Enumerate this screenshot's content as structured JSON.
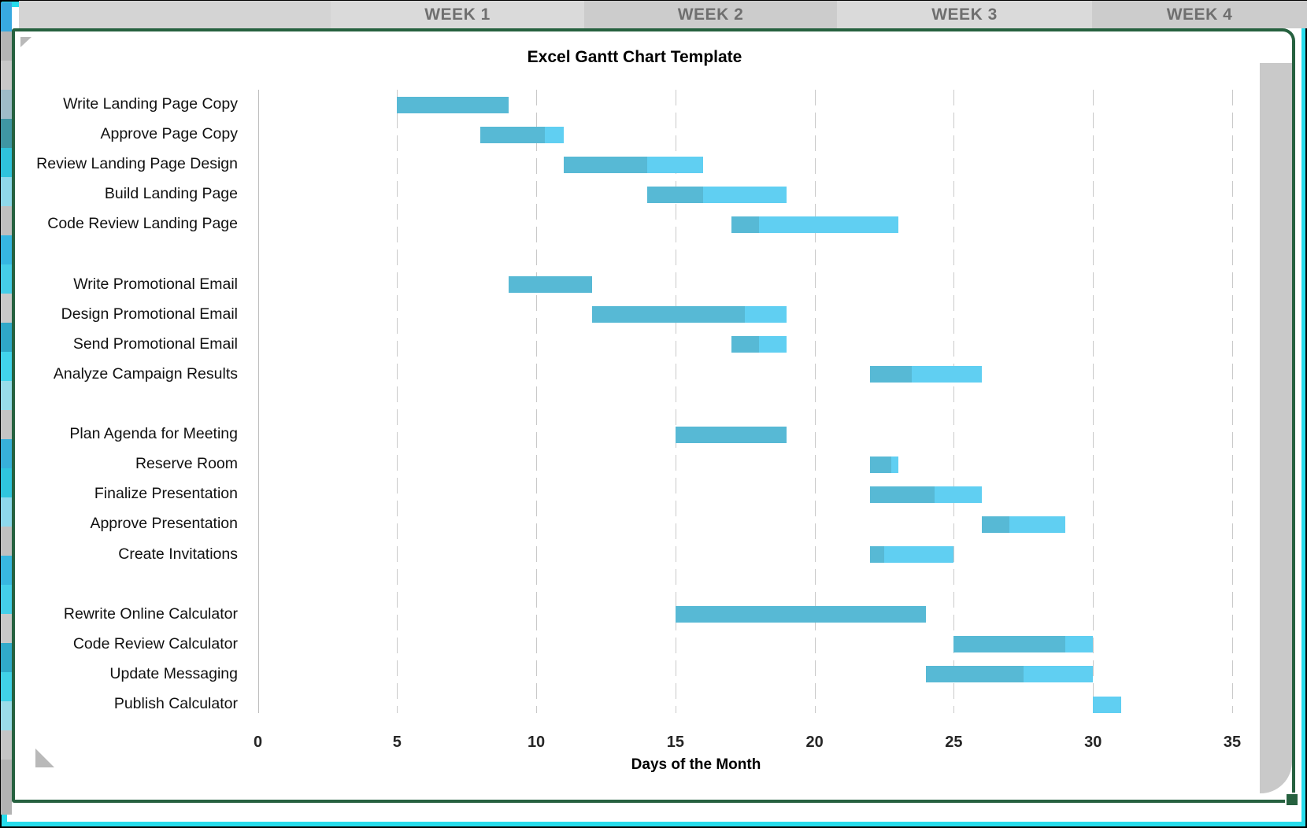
{
  "window": {
    "week_header": {
      "cells": [
        {
          "label": ""
        },
        {
          "label": "WEEK 1"
        },
        {
          "label": "WEEK 2"
        },
        {
          "label": "WEEK 3"
        },
        {
          "label": "WEEK 4"
        }
      ]
    }
  },
  "colors": {
    "outer_border": "#000000",
    "accent_cyan_ring": "#27dcec",
    "frame_green": "#26613f",
    "header_pre": "#d4d4d4",
    "header_light": "#dadada",
    "header_dark": "#cccccc",
    "header_text": "#6f6f6f",
    "bar_completed": "#57b9d5",
    "bar_remaining": "#60cff2",
    "gridline": "#c9c9c9",
    "page_shadow": "#c9c9c9"
  },
  "side_strip": {
    "colors": [
      "#38a9e0",
      "#b5b5b5",
      "#c8c8c8",
      "#9fbcc8",
      "#3f96a3",
      "#2fc3dc",
      "#8fd8ea",
      "#bfbfbf",
      "#36b6e2",
      "#45cde8",
      "#c9c9c9",
      "#2fa8c8",
      "#41d4ec",
      "#98dcea",
      "#c4c4c4",
      "#37b0da",
      "#2fc5de",
      "#8ed8ec",
      "#c0c0c0",
      "#38b7e0",
      "#44cfe9",
      "#c8c8c8",
      "#30aaca",
      "#40d2e8",
      "#9bdce9",
      "#c5c5c5",
      "#b3b3b3",
      "#b3b3b3"
    ]
  },
  "chart_data": {
    "type": "bar",
    "subtype": "gantt",
    "title": "Excel Gantt Chart Template",
    "xlabel": "Days of the Month",
    "ylabel": "",
    "xlim": [
      0,
      35
    ],
    "x_ticks": [
      0,
      5,
      10,
      15,
      20,
      25,
      30,
      35
    ],
    "grid": "dashed-vertical",
    "legend_position": "none",
    "week_headers": [
      "WEEK 1",
      "WEEK 2",
      "WEEK 3",
      "WEEK 4"
    ],
    "n_rows": 21,
    "series": [
      {
        "name": "completed",
        "color": "#57b9d5"
      },
      {
        "name": "remaining",
        "color": "#60cff2"
      }
    ],
    "tasks": [
      {
        "name": "Write Landing Page Copy",
        "row": 0,
        "start": 5,
        "end": 9,
        "progress_until": 9
      },
      {
        "name": "Approve Page Copy",
        "row": 1,
        "start": 8,
        "end": 11,
        "progress_until": 10.3
      },
      {
        "name": "Review Landing Page Design",
        "row": 2,
        "start": 11,
        "end": 16,
        "progress_until": 14
      },
      {
        "name": "Build Landing Page",
        "row": 3,
        "start": 14,
        "end": 19,
        "progress_until": 16
      },
      {
        "name": "Code Review Landing Page",
        "row": 4,
        "start": 17,
        "end": 23,
        "progress_until": 18
      },
      {
        "name": "Write Promotional Email",
        "row": 6,
        "start": 9,
        "end": 12,
        "progress_until": 12
      },
      {
        "name": "Design Promotional Email",
        "row": 7,
        "start": 12,
        "end": 19,
        "progress_until": 17.5
      },
      {
        "name": "Send Promotional Email",
        "row": 8,
        "start": 17,
        "end": 19,
        "progress_until": 18
      },
      {
        "name": "Analyze Campaign Results",
        "row": 9,
        "start": 22,
        "end": 26,
        "progress_until": 23.5
      },
      {
        "name": "Plan Agenda for Meeting",
        "row": 11,
        "start": 15,
        "end": 19,
        "progress_until": 19
      },
      {
        "name": "Reserve Room",
        "row": 12,
        "start": 22,
        "end": 23,
        "progress_until": 22.75
      },
      {
        "name": "Finalize Presentation",
        "row": 13,
        "start": 22,
        "end": 26,
        "progress_until": 24.3
      },
      {
        "name": "Approve Presentation",
        "row": 14,
        "start": 26,
        "end": 29,
        "progress_until": 27
      },
      {
        "name": "Create Invitations",
        "row": 15,
        "start": 22,
        "end": 25,
        "progress_until": 22.5
      },
      {
        "name": "Rewrite Online Calculator",
        "row": 17,
        "start": 15,
        "end": 24,
        "progress_until": 24
      },
      {
        "name": "Code Review Calculator",
        "row": 18,
        "start": 25,
        "end": 30,
        "progress_until": 29
      },
      {
        "name": "Update Messaging",
        "row": 19,
        "start": 24,
        "end": 30,
        "progress_until": 27.5
      },
      {
        "name": "Publish Calculator",
        "row": 20,
        "start": 30,
        "end": 31,
        "progress_until": 30
      }
    ]
  }
}
